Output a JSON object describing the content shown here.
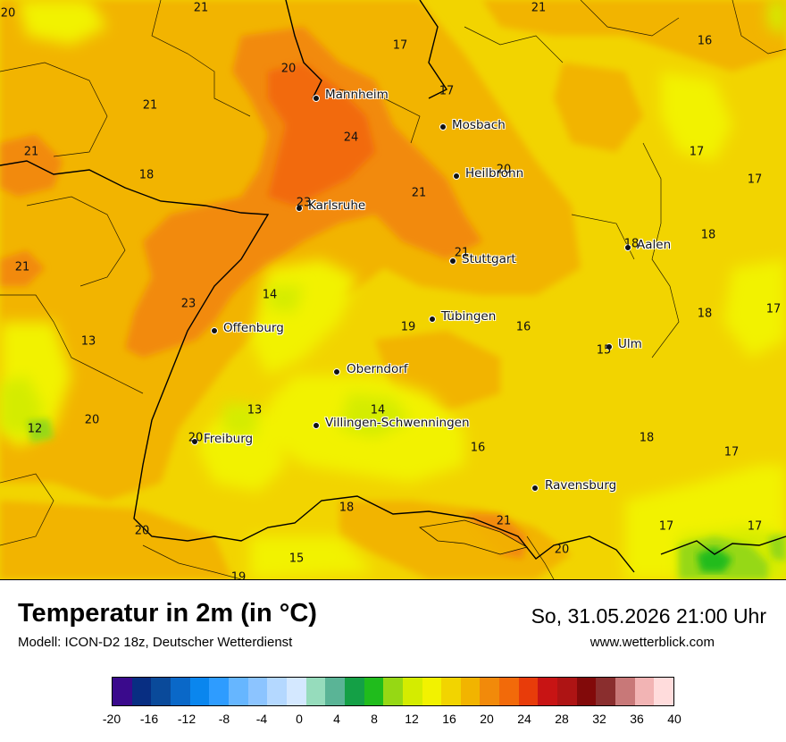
{
  "title": "Temperatur in 2m (in °C)",
  "model": "Modell: ICON-D2 18z, Deutscher Wetterdienst",
  "datetime": "So, 31.05.2026 21:00 Uhr",
  "website": "www.wetterblick.com",
  "cities": [
    {
      "name": "Mannheim"
    },
    {
      "name": "Mosbach"
    },
    {
      "name": "Heilbronn"
    },
    {
      "name": "Karlsruhe"
    },
    {
      "name": "Stuttgart"
    },
    {
      "name": "Aalen"
    },
    {
      "name": "Tübingen"
    },
    {
      "name": "Offenburg"
    },
    {
      "name": "Ulm"
    },
    {
      "name": "Oberndorf"
    },
    {
      "name": "Villingen-Schwenningen"
    },
    {
      "name": "Freiburg"
    },
    {
      "name": "Ravensburg"
    }
  ],
  "values": [
    "20",
    "21",
    "21",
    "17",
    "16",
    "20",
    "17",
    "21",
    "24",
    "21",
    "18",
    "20",
    "17",
    "17",
    "21",
    "23",
    "21",
    "18",
    "21",
    "18",
    "14",
    "23",
    "17",
    "13",
    "19",
    "16",
    "18",
    "15",
    "12",
    "20",
    "13",
    "14",
    "20",
    "16",
    "18",
    "17",
    "18",
    "20",
    "21",
    "17",
    "17",
    "20",
    "15",
    "19"
  ],
  "legend": {
    "colors": [
      "#3a0a8c",
      "#082e82",
      "#0a4a9a",
      "#0a68c8",
      "#0a86ee",
      "#2e9cff",
      "#66b6ff",
      "#8cc4ff",
      "#b4d8ff",
      "#d4e8ff",
      "#96dcbc",
      "#5ab496",
      "#14a046",
      "#20bc1c",
      "#96d814",
      "#d4ec00",
      "#f2f200",
      "#f2d400",
      "#f2b400",
      "#f28a0a",
      "#f26a0a",
      "#e83c0a",
      "#c81414",
      "#ae1414",
      "#820a0a",
      "#8a2e2e",
      "#c87878",
      "#f2b4b4",
      "#ffdcdc"
    ],
    "ticks": [
      "-20",
      "-16",
      "-12",
      "-8",
      "-4",
      "0",
      "4",
      "8",
      "12",
      "16",
      "20",
      "24",
      "28",
      "32",
      "36",
      "40"
    ]
  }
}
